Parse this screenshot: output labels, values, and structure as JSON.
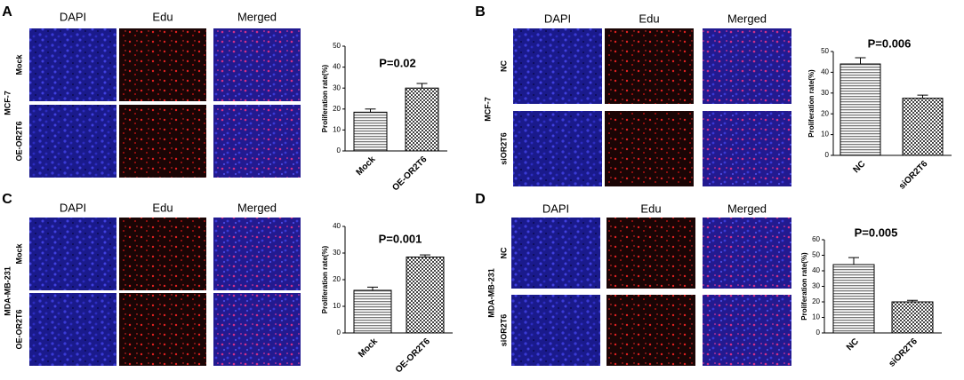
{
  "panels": [
    {
      "label": "A",
      "columns": [
        "DAPI",
        "Edu",
        "Merged"
      ],
      "group": "MCF-7",
      "rows": [
        "Mock",
        "OE-OR2T6"
      ]
    },
    {
      "label": "B",
      "columns": [
        "DAPI",
        "Edu",
        "Merged"
      ],
      "group": "MCF-7",
      "rows": [
        "NC",
        "siOR2T6"
      ]
    },
    {
      "label": "C",
      "columns": [
        "DAPI",
        "Edu",
        "Merged"
      ],
      "group": "MDA-MB-231",
      "rows": [
        "Mock",
        "OE-OR2T6"
      ]
    },
    {
      "label": "D",
      "columns": [
        "DAPI",
        "Edu",
        "Merged"
      ],
      "group": "MDA-MB-231",
      "rows": [
        "NC",
        "siOR2T6"
      ]
    }
  ],
  "chart_data": [
    {
      "type": "bar",
      "title": "P=0.02",
      "y_label": "Proliferation rate(%)",
      "categories": [
        "Mock",
        "OE-OR2T6"
      ],
      "values": [
        18.5,
        30
      ],
      "errors": [
        1.5,
        2.2
      ],
      "ylim": [
        0,
        50
      ],
      "yticks": [
        0,
        10,
        20,
        30,
        40,
        50
      ]
    },
    {
      "type": "bar",
      "title": "P=0.006",
      "y_label": "Proliferation rate(%)",
      "categories": [
        "NC",
        "siOR2T6"
      ],
      "values": [
        44,
        27.5
      ],
      "errors": [
        3,
        1.5
      ],
      "ylim": [
        0,
        50
      ],
      "yticks": [
        0,
        10,
        20,
        30,
        40,
        50
      ]
    },
    {
      "type": "bar",
      "title": "P=0.001",
      "y_label": "Proliferation rate(%)",
      "categories": [
        "Mock",
        "OE-OR2T6"
      ],
      "values": [
        16,
        28.5
      ],
      "errors": [
        1.2,
        0.8
      ],
      "ylim": [
        0,
        40
      ],
      "yticks": [
        0,
        10,
        20,
        30,
        40
      ]
    },
    {
      "type": "bar",
      "title": "P=0.005",
      "y_label": "Proliferation rate(%)",
      "categories": [
        "NC",
        "siOR2T6"
      ],
      "values": [
        44,
        20
      ],
      "errors": [
        4.5,
        1
      ],
      "ylim": [
        0,
        60
      ],
      "yticks": [
        0,
        10,
        20,
        30,
        40,
        50,
        60
      ]
    }
  ]
}
